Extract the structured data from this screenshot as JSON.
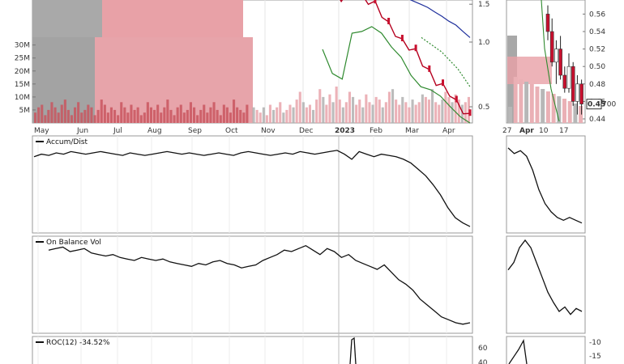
{
  "chart_data": {
    "type": "line",
    "panels": {
      "price_main": {
        "ytick_labels": [
          "1.5",
          "1.0",
          "0.5"
        ],
        "yticks": [
          1.5,
          1.0,
          0.5
        ],
        "volume_tick_labels": [
          "30M",
          "25M",
          "20M",
          "15M",
          "10M",
          "5M"
        ],
        "volume_ticks": [
          30,
          25,
          20,
          15,
          10,
          5
        ],
        "x_labels": [
          "May",
          "Jun",
          "Jul",
          "Aug",
          "Sep",
          "Oct",
          "Nov",
          "Dec",
          "2023",
          "Feb",
          "Mar",
          "Apr"
        ],
        "shaded_regions": [
          {
            "from": "May",
            "to": "Jun",
            "color": "#a8a8a8"
          },
          {
            "from": "Jun",
            "to": "Oct",
            "color": "#e8a0a6"
          },
          {
            "from": "Jun",
            "to": "Nov",
            "color": "#e8a0a6"
          }
        ],
        "close_series": [
          2.2,
          2.0,
          1.7,
          1.6,
          1.65,
          1.7,
          1.62,
          1.55,
          1.5,
          1.35,
          1.2,
          1.1,
          1.0,
          0.95,
          0.9,
          0.8,
          0.72,
          0.65,
          0.62,
          0.58,
          0.52,
          0.48,
          0.45
        ],
        "ma_long": [
          1.9,
          1.82,
          1.75,
          1.7,
          1.66,
          1.6,
          1.55,
          1.5,
          1.45,
          1.38,
          1.32,
          1.25,
          1.2,
          1.12,
          1.05
        ],
        "band_lower": [
          1.1,
          0.85,
          0.8,
          1.1,
          1.12,
          1.18,
          1.1,
          0.95,
          0.85,
          0.7,
          0.62,
          0.6,
          0.56,
          0.5,
          0.45,
          0.42
        ],
        "volume_millions": [
          4,
          6,
          7,
          3,
          5,
          8,
          6,
          4,
          7,
          9,
          5,
          3,
          6,
          8,
          4,
          5,
          7,
          6,
          3,
          5,
          9,
          7,
          4,
          6,
          5,
          3,
          8,
          6,
          4,
          7,
          5,
          6,
          3,
          4,
          8,
          6,
          5,
          7,
          4,
          6,
          9,
          5,
          3,
          6,
          7,
          4,
          5,
          8,
          6,
          3,
          5,
          7,
          4,
          6,
          8,
          5,
          3,
          7,
          6,
          4,
          9,
          6,
          5,
          4,
          7,
          8,
          6,
          5,
          4,
          6,
          3,
          7,
          5,
          6,
          8,
          4,
          5,
          7,
          6,
          9,
          12,
          8,
          6,
          7,
          5,
          9,
          13,
          10,
          7,
          11,
          8,
          14,
          9,
          6,
          8,
          12,
          10,
          7,
          9,
          6,
          11,
          8,
          7,
          10,
          9,
          6,
          8,
          12,
          13,
          9,
          7,
          10,
          8,
          6,
          9,
          7,
          8,
          11,
          10,
          9,
          13,
          8,
          7,
          9,
          12,
          10,
          8,
          11,
          9,
          7,
          8,
          10
        ]
      },
      "price_zoom": {
        "ytick_labels": [
          "0.56",
          "0.54",
          "0.52",
          "0.50",
          "0.48",
          "0.46",
          "0.44"
        ],
        "yticks": [
          0.56,
          0.54,
          0.52,
          0.5,
          0.48,
          0.46,
          0.44
        ],
        "x_labels": [
          "27",
          "Apr",
          "10",
          "17"
        ],
        "last_price_label": "0.45",
        "last_price_suffix": "700",
        "last_price": 0.457,
        "candles": [
          {
            "o": 0.56,
            "h": 0.57,
            "l": 0.53,
            "c": 0.54
          },
          {
            "o": 0.54,
            "h": 0.555,
            "l": 0.5,
            "c": 0.505
          },
          {
            "o": 0.505,
            "h": 0.53,
            "l": 0.48,
            "c": 0.52
          },
          {
            "o": 0.52,
            "h": 0.535,
            "l": 0.485,
            "c": 0.49
          },
          {
            "o": 0.49,
            "h": 0.5,
            "l": 0.47,
            "c": 0.475
          },
          {
            "o": 0.475,
            "h": 0.515,
            "l": 0.47,
            "c": 0.5
          },
          {
            "o": 0.5,
            "h": 0.505,
            "l": 0.455,
            "c": 0.46
          },
          {
            "o": 0.46,
            "h": 0.49,
            "l": 0.445,
            "c": 0.48
          },
          {
            "o": 0.48,
            "h": 0.485,
            "l": 0.445,
            "c": 0.457
          }
        ]
      },
      "accum_dist": {
        "label": "Accum/Dist",
        "values": [
          60,
          62,
          61,
          63,
          62,
          64,
          63,
          62,
          63,
          64,
          63,
          62,
          61,
          63,
          62,
          61,
          62,
          63,
          64,
          63,
          62,
          63,
          62,
          61,
          62,
          63,
          62,
          61,
          63,
          64,
          63,
          62,
          61,
          62,
          63,
          62,
          64,
          63,
          62,
          63,
          64,
          65,
          62,
          58,
          64,
          62,
          60,
          62,
          61,
          60,
          58,
          55,
          50,
          45,
          38,
          30,
          20,
          12,
          8,
          5
        ],
        "zoom_values": [
          30,
          28,
          29,
          27,
          22,
          15,
          10,
          7,
          5,
          4,
          5,
          4,
          3
        ]
      },
      "obv": {
        "label": "On Balance Vol",
        "values": [
          55,
          56,
          57,
          54,
          55,
          56,
          53,
          52,
          51,
          52,
          50,
          49,
          48,
          50,
          49,
          48,
          49,
          47,
          46,
          45,
          44,
          46,
          45,
          47,
          48,
          46,
          45,
          43,
          44,
          45,
          48,
          50,
          52,
          55,
          54,
          56,
          58,
          55,
          52,
          56,
          54,
          50,
          52,
          48,
          46,
          44,
          42,
          45,
          40,
          35,
          32,
          28,
          22,
          18,
          14,
          10,
          8,
          6,
          5,
          6
        ],
        "zoom_values": [
          40,
          45,
          55,
          60,
          55,
          45,
          35,
          25,
          18,
          12,
          15,
          10,
          14,
          12
        ]
      },
      "roc": {
        "label": "ROC(12) -34.52%",
        "ytick_labels": [
          "60",
          "40"
        ],
        "yticks": [
          60,
          40
        ],
        "spike_label": "",
        "zoom_ytick_labels": [
          "-10",
          "-15"
        ],
        "zoom_yticks": [
          -10,
          -15
        ]
      }
    }
  }
}
